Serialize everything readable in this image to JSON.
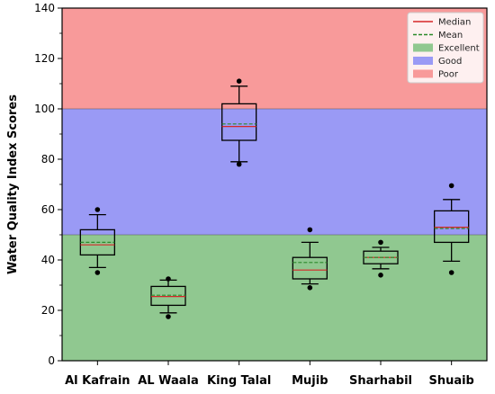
{
  "chart_data": {
    "type": "box",
    "ylabel": "Water Quality Index Scores",
    "xlabel": "",
    "ylim": [
      0,
      140
    ],
    "yticks": [
      0,
      20,
      40,
      60,
      80,
      100,
      120,
      140
    ],
    "categories": [
      "Al Kafrain",
      "AL Waala",
      "King Talal",
      "Mujib",
      "Sharhabil",
      "Shuaib"
    ],
    "boxes": [
      {
        "whisker_low": 37,
        "q1": 42,
        "median": 46,
        "mean": 47,
        "q3": 52,
        "whisker_high": 58,
        "outliers": [
          35,
          60
        ]
      },
      {
        "whisker_low": 19,
        "q1": 22,
        "median": 25.5,
        "mean": 26,
        "q3": 29.5,
        "whisker_high": 32,
        "outliers": [
          17.5,
          32.5
        ]
      },
      {
        "whisker_low": 79,
        "q1": 87.5,
        "median": 93,
        "mean": 94,
        "q3": 102,
        "whisker_high": 109,
        "outliers": [
          78,
          111
        ]
      },
      {
        "whisker_low": 30.5,
        "q1": 32.5,
        "median": 36,
        "mean": 39,
        "q3": 41,
        "whisker_high": 47,
        "outliers": [
          29,
          52
        ]
      },
      {
        "whisker_low": 36.5,
        "q1": 38.5,
        "median": 41,
        "mean": 41,
        "q3": 43.5,
        "whisker_high": 45,
        "outliers": [
          34,
          47
        ]
      },
      {
        "whisker_low": 39.5,
        "q1": 47,
        "median": 53,
        "mean": 52.5,
        "q3": 59.5,
        "whisker_high": 64,
        "outliers": [
          35,
          69.5
        ]
      }
    ],
    "bands": [
      {
        "name": "Excellent",
        "from": 0,
        "to": 50,
        "color": "#90c890"
      },
      {
        "name": "Good",
        "from": 50,
        "to": 100,
        "color": "#9a9af5"
      },
      {
        "name": "Poor",
        "from": 100,
        "to": 140,
        "color": "#f89a9a"
      }
    ],
    "legend": {
      "placement": "top-right",
      "entries": [
        {
          "label": "Median",
          "kind": "line",
          "color": "#d62728",
          "dash": false
        },
        {
          "label": "Mean",
          "kind": "line",
          "color": "#2a8a2a",
          "dash": true
        },
        {
          "label": "Excellent",
          "kind": "patch",
          "color": "#90c890"
        },
        {
          "label": "Good",
          "kind": "patch",
          "color": "#9a9af5"
        },
        {
          "label": "Poor",
          "kind": "patch",
          "color": "#f89a9a"
        }
      ]
    },
    "colors": {
      "median": "#d62728",
      "mean": "#2a8a2a",
      "box": "#000000"
    }
  }
}
